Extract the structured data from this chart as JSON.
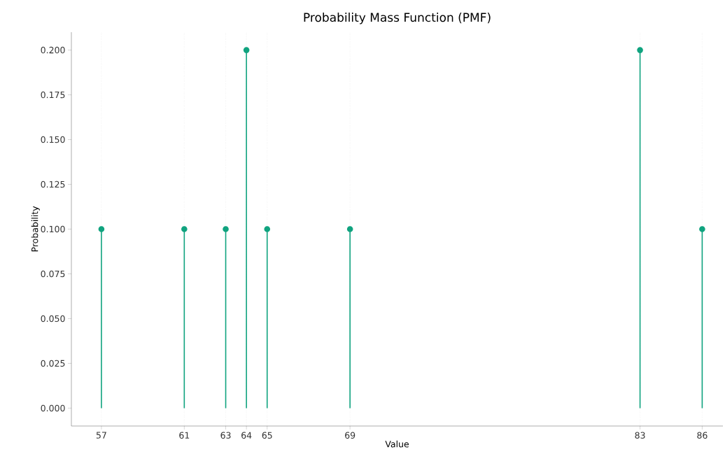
{
  "chart_data": {
    "type": "lollipop",
    "title": "Probability Mass Function (PMF)",
    "xlabel": "Value",
    "ylabel": "Probability",
    "x": [
      57,
      61,
      63,
      64,
      65,
      69,
      83,
      86
    ],
    "values": [
      0.1,
      0.1,
      0.1,
      0.2,
      0.1,
      0.1,
      0.2,
      0.1
    ],
    "color": "#10a37f",
    "marker": "circle",
    "grid": "x",
    "xlim": [
      55.55,
      87
    ],
    "ylim": [
      -0.01,
      0.21
    ],
    "xticks": [
      57,
      61,
      63,
      64,
      65,
      69,
      83,
      86
    ],
    "yticks": [
      {
        "value": 0,
        "label": "0.000"
      },
      {
        "value": 0.025,
        "label": "0.025"
      },
      {
        "value": 0.05,
        "label": "0.050"
      },
      {
        "value": 0.075,
        "label": "0.075"
      },
      {
        "value": 0.1,
        "label": "0.100"
      },
      {
        "value": 0.125,
        "label": "0.125"
      },
      {
        "value": 0.15,
        "label": "0.150"
      },
      {
        "value": 0.175,
        "label": "0.175"
      },
      {
        "value": 0.2,
        "label": "0.200"
      }
    ]
  }
}
